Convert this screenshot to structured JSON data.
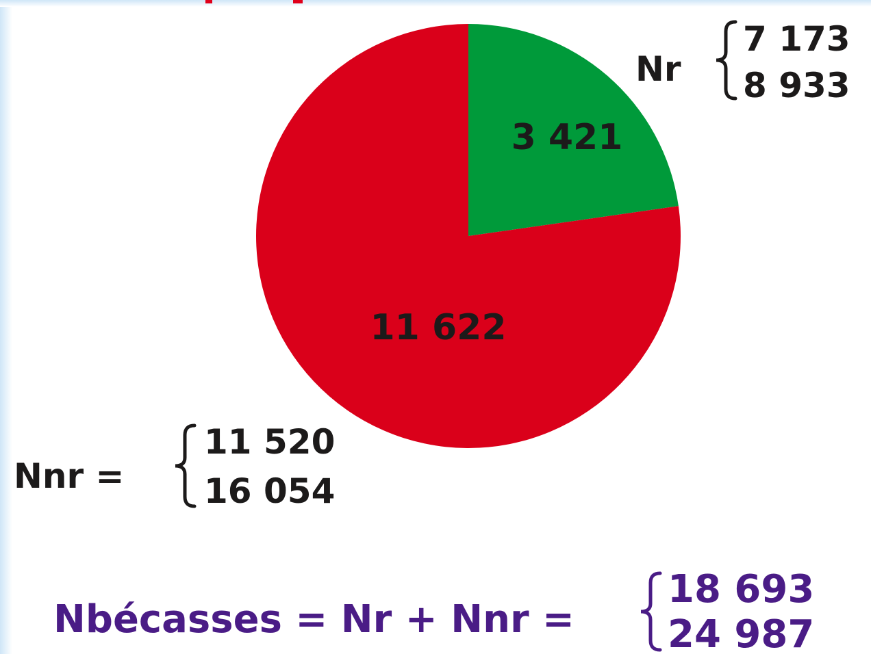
{
  "chart_data": {
    "type": "pie",
    "values": [
      3421,
      11622
    ],
    "value_labels": [
      "3 421",
      "11 622"
    ],
    "colors": [
      "#009a3a",
      "#da001a"
    ],
    "annotations": [
      {
        "label": "Nr",
        "lines": [
          "7 173",
          "8 933"
        ]
      },
      {
        "label": "Nnr =",
        "lines": [
          "11 520",
          "16 054"
        ]
      },
      {
        "label": "Nbécasses = Nr + Nnr =",
        "lines": [
          "18 693",
          "24 987"
        ]
      }
    ]
  }
}
